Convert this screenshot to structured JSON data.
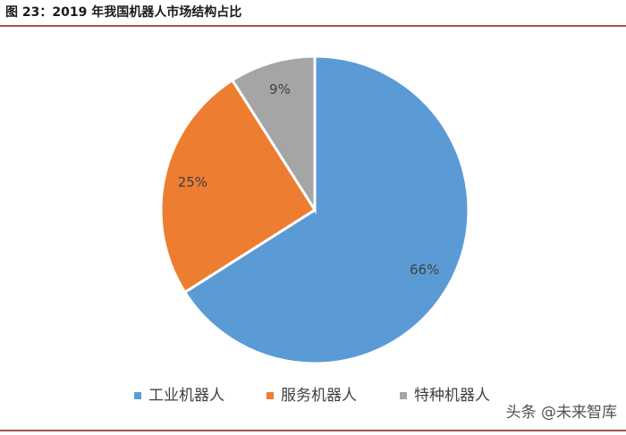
{
  "chart_data": {
    "type": "pie",
    "title": "图 23：2019 年我国机器人市场结构占比",
    "categories": [
      "工业机器人",
      "服务机器人",
      "特种机器人"
    ],
    "values": [
      66,
      25,
      9
    ],
    "value_labels": [
      "66%",
      "25%",
      "9%"
    ],
    "colors": [
      "#5b9bd5",
      "#ed7d31",
      "#a5a5a5"
    ],
    "legend": "bottom",
    "watermark": "头条 @未来智库"
  }
}
